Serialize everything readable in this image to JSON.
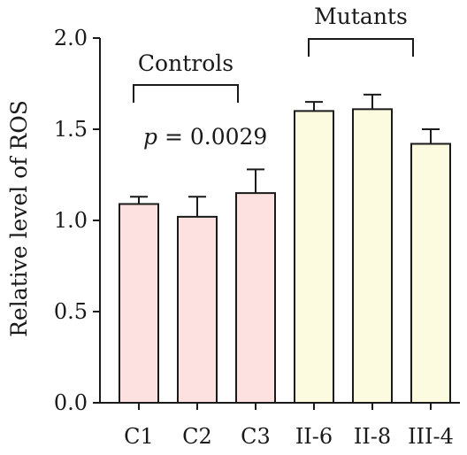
{
  "chart_data": {
    "type": "bar",
    "categories": [
      "C1",
      "C2",
      "C3",
      "II-6",
      "II-8",
      "III-4"
    ],
    "values": [
      1.09,
      1.02,
      1.15,
      1.6,
      1.61,
      1.42
    ],
    "errors": [
      0.04,
      0.11,
      0.13,
      0.05,
      0.08,
      0.08
    ],
    "ylabel": "Relative level of ROS",
    "ylim": [
      0,
      2.0
    ],
    "yticks": [
      0.0,
      0.5,
      1.0,
      1.5,
      2.0
    ],
    "ytick_labels": [
      "0.0",
      "0.5",
      "1.0",
      "1.5",
      "2.0"
    ],
    "grid": false,
    "colors": {
      "controls": "#fde0e0",
      "mutants": "#fdfbdf",
      "axis": "#1a1a1a"
    },
    "groups": [
      {
        "label": "Controls",
        "members": [
          0,
          1,
          2
        ]
      },
      {
        "label": "Mutants",
        "members": [
          3,
          4,
          5
        ]
      }
    ],
    "annotation": {
      "p_symbol": "p",
      "p_value_text": " = 0.0029"
    }
  }
}
